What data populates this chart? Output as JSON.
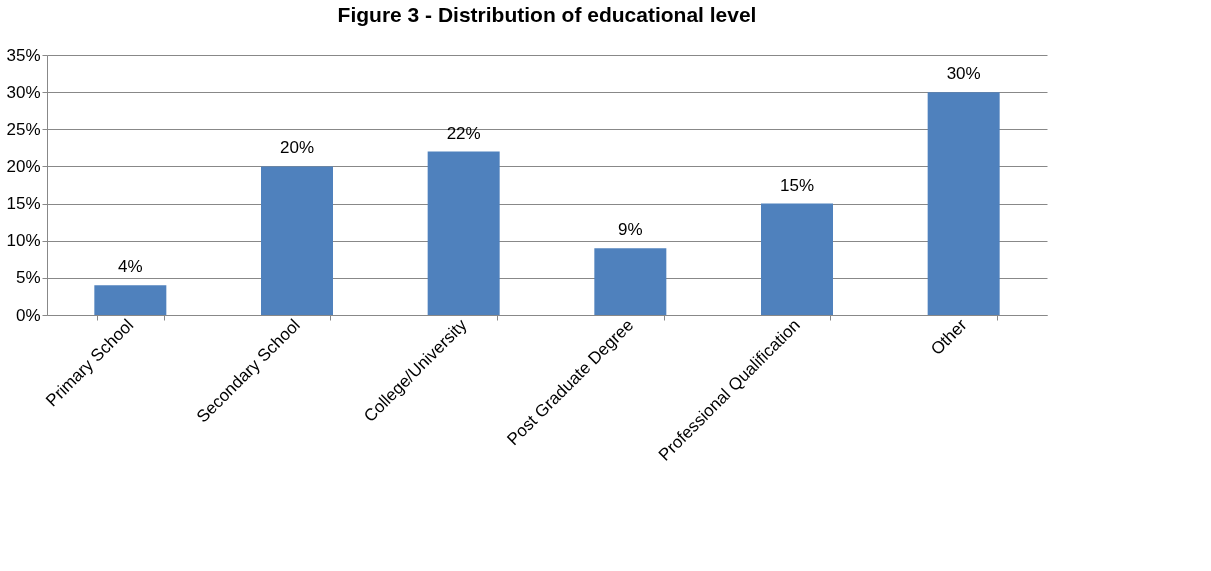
{
  "chart_data": {
    "type": "bar",
    "title": "Figure 3 - Distribution of educational level",
    "categories": [
      "Primary School",
      "Secondary School",
      "College/University",
      "Post Graduate Degree",
      "Professional Qualification",
      "Other"
    ],
    "values": [
      4,
      20,
      22,
      9,
      15,
      30
    ],
    "value_labels": [
      "4%",
      "20%",
      "22%",
      "9%",
      "15%",
      "30%"
    ],
    "color": "#4f81bd",
    "ylim": [
      0,
      35
    ],
    "yticks": [
      {
        "value": 0,
        "label": "0%"
      },
      {
        "value": 5,
        "label": "5%"
      },
      {
        "value": 10,
        "label": "10%"
      },
      {
        "value": 15,
        "label": "15%"
      },
      {
        "value": 20,
        "label": "20%"
      },
      {
        "value": 25,
        "label": "25%"
      },
      {
        "value": 30,
        "label": "30%"
      },
      {
        "value": 35,
        "label": "35%"
      }
    ],
    "grid": "y"
  }
}
